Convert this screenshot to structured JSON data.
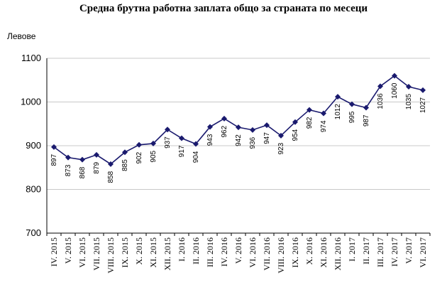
{
  "chart_data": {
    "type": "line",
    "title": "Средна брутна работна заплата общо за страната по месеци",
    "ylabel": "Левове",
    "xlabel": "",
    "ylim": [
      700,
      1100
    ],
    "yticks": [
      700,
      800,
      900,
      1000,
      1100
    ],
    "grid": true,
    "categories": [
      "IV. 2015",
      "V. 2015",
      "VI. 2015",
      "VII. 2015",
      "VIII. 2015",
      "IX. 2015",
      "X. 2015",
      "XI. 2015",
      "XII. 2015",
      "I. 2016",
      "II. 2016",
      "III. 2016",
      "IV. 2016",
      "V. 2016",
      "VI. 2016",
      "VII. 2016",
      "VIII. 2016",
      "IX. 2016",
      "X. 2016",
      "XI. 2016",
      "XII. 2016",
      "I. 2017",
      "II. 2017",
      "III. 2017",
      "IV. 2017",
      "V. 2017",
      "VI. 2017"
    ],
    "series": [
      {
        "values": [
          897,
          873,
          868,
          879,
          858,
          885,
          902,
          905,
          937,
          917,
          904,
          943,
          962,
          942,
          936,
          947,
          923,
          954,
          982,
          974,
          1012,
          995,
          987,
          1036,
          1060,
          1035,
          1027
        ],
        "color": "#1a1a6e"
      }
    ]
  }
}
